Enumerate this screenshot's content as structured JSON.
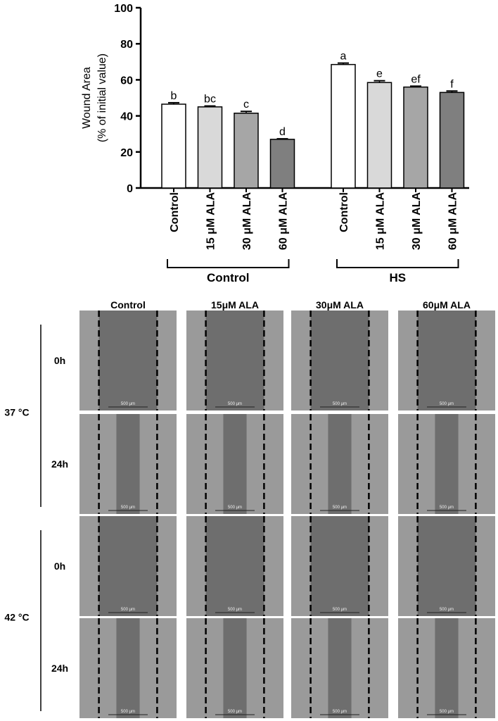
{
  "chart_data": {
    "type": "bar",
    "ylabel": [
      "Wound Area",
      "(% of initial value)"
    ],
    "ylim": [
      0,
      100
    ],
    "yticks": [
      0,
      20,
      40,
      60,
      80,
      100
    ],
    "colors": [
      "#ffffff",
      "#d9d9d9",
      "#a6a6a6",
      "#7f7f7f"
    ],
    "groups": [
      {
        "name": "Control",
        "categories": [
          "Control",
          "15 μM ALA",
          "30 μM ALA",
          "60 μM ALA"
        ],
        "values": [
          46.5,
          45,
          41.5,
          27
        ],
        "errors": [
          0.8,
          0.5,
          1,
          0.3
        ],
        "letters": [
          "b",
          "bc",
          "c",
          "d"
        ]
      },
      {
        "name": "HS",
        "categories": [
          "Control",
          "15 μM ALA",
          "30 μM ALA",
          "60 μM ALA"
        ],
        "values": [
          68.5,
          58.5,
          56,
          53
        ],
        "errors": [
          0.8,
          1,
          0.5,
          0.8
        ],
        "letters": [
          "a",
          "e",
          "ef",
          "f"
        ]
      }
    ]
  },
  "micrographs": {
    "columns": [
      "Control",
      "15μM ALA",
      "30μM ALA",
      "60μM ALA"
    ],
    "temperatures": [
      {
        "label": "37 °C",
        "times": [
          "0h",
          "24h"
        ]
      },
      {
        "label": "42 °C",
        "times": [
          "0h",
          "24h"
        ]
      }
    ],
    "scale_bar": "500 µm"
  }
}
